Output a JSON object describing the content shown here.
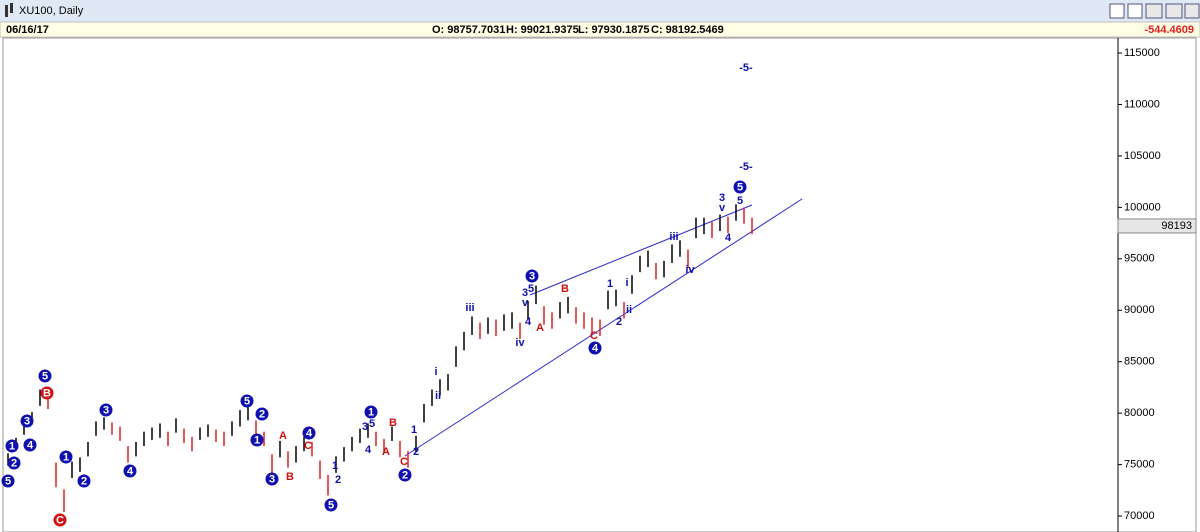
{
  "window": {
    "title": "XU100, Daily"
  },
  "info": {
    "date": "06/16/17",
    "open": "O: 98757.7031",
    "high": "H: 99021.9375",
    "low": "L: 97930.1875",
    "close": "C: 98192.5469",
    "change": "-544.4609"
  },
  "chart_data": {
    "type": "ohlc",
    "ylim": [
      68450,
      116460
    ],
    "yticks": [
      70000,
      75000,
      80000,
      85000,
      90000,
      95000,
      100000,
      105000,
      110000,
      115000
    ],
    "last_price": 98193,
    "up_color": "#000000",
    "down_color": "#e02020",
    "high": [
      76100,
      77600,
      79100,
      80100,
      82300,
      81600,
      75200,
      72600,
      75300,
      75700,
      77200,
      79200,
      79600,
      79100,
      78700,
      76800,
      77200,
      78200,
      78600,
      79000,
      78200,
      79500,
      78500,
      77700,
      78600,
      78900,
      78400,
      78200,
      79200,
      80300,
      80700,
      79300,
      78200,
      76000,
      77300,
      76300,
      76800,
      77700,
      77200,
      75400,
      74000,
      75800,
      76700,
      77700,
      78500,
      79000,
      78200,
      77500,
      78700,
      77300,
      76300,
      77800,
      80900,
      82300,
      83300,
      83800,
      86500,
      87900,
      89400,
      88800,
      89300,
      89100,
      89600,
      89800,
      88800,
      90900,
      92400,
      90400,
      89800,
      90800,
      91300,
      90300,
      89800,
      89300,
      89100,
      91900,
      92000,
      90800,
      93400,
      95300,
      95800,
      94600,
      94800,
      96400,
      96800,
      95900,
      99000,
      99000,
      98600,
      99300,
      99100,
      100300,
      100000,
      99000
    ],
    "low": [
      74900,
      76400,
      77900,
      78900,
      80700,
      80400,
      72800,
      70400,
      73700,
      74300,
      75800,
      77800,
      78400,
      77900,
      77300,
      75200,
      75800,
      76800,
      77400,
      77600,
      76800,
      78100,
      77100,
      76300,
      77400,
      77700,
      77200,
      76800,
      77800,
      78700,
      79300,
      77700,
      76800,
      74000,
      75700,
      74700,
      75200,
      76300,
      75800,
      73600,
      72000,
      74200,
      75300,
      76300,
      77100,
      77600,
      76800,
      76100,
      77300,
      75700,
      74700,
      76200,
      79100,
      80700,
      81700,
      82200,
      84500,
      86100,
      87600,
      87200,
      87700,
      87500,
      88000,
      88200,
      87200,
      89100,
      90600,
      88600,
      88200,
      89200,
      89700,
      88700,
      88200,
      87700,
      87500,
      90100,
      90400,
      89200,
      91600,
      93700,
      94200,
      93000,
      93200,
      94600,
      95200,
      94100,
      97000,
      97400,
      97000,
      97700,
      97500,
      98700,
      98400,
      97400
    ],
    "wedge": "wedge",
    "annotations": [
      {
        "label": "5",
        "style": "cb"
      },
      {
        "label": "2",
        "style": "cb"
      },
      {
        "label": "1",
        "style": "cb"
      },
      {
        "label": "4",
        "style": "cb"
      },
      {
        "label": "3",
        "style": "cb"
      },
      {
        "label": "5",
        "style": "cb"
      },
      {
        "label": "B",
        "style": "cr"
      },
      {
        "label": "C",
        "style": "cr"
      },
      {
        "label": "1",
        "style": "cb"
      },
      {
        "label": "2",
        "style": "cb"
      },
      {
        "label": "3",
        "style": "cb"
      },
      {
        "label": "4",
        "style": "cb"
      },
      {
        "label": "5",
        "style": "cb"
      },
      {
        "label": "2",
        "style": "cb"
      },
      {
        "label": "1",
        "style": "cb"
      },
      {
        "label": "3",
        "style": "cb"
      },
      {
        "label": "A",
        "style": "r"
      },
      {
        "label": "B",
        "style": "r"
      },
      {
        "label": "4",
        "style": "cb"
      },
      {
        "label": "C",
        "style": "r"
      },
      {
        "label": "5",
        "style": "cb"
      },
      {
        "label": "1",
        "style": "cb"
      },
      {
        "label": "3",
        "style": "b"
      },
      {
        "label": "5",
        "style": "b"
      },
      {
        "label": "4",
        "style": "b"
      },
      {
        "label": "B",
        "style": "r"
      },
      {
        "label": "A",
        "style": "r"
      },
      {
        "label": "2",
        "style": "b"
      },
      {
        "label": "1",
        "style": "b"
      },
      {
        "label": "C",
        "style": "r"
      },
      {
        "label": "2",
        "style": "cb"
      },
      {
        "label": "1",
        "style": "b"
      },
      {
        "label": "2",
        "style": "b"
      },
      {
        "label": "i",
        "style": "b"
      },
      {
        "label": "ii",
        "style": "b"
      },
      {
        "label": "iii",
        "style": "b"
      },
      {
        "label": "iv",
        "style": "b"
      },
      {
        "label": "3",
        "style": "cb"
      },
      {
        "label": "3",
        "style": "b"
      },
      {
        "label": "5",
        "style": "b"
      },
      {
        "label": "v",
        "style": "b"
      },
      {
        "label": "4",
        "style": "b"
      },
      {
        "label": "A",
        "style": "r"
      },
      {
        "label": "B",
        "style": "r"
      },
      {
        "label": "C",
        "style": "r"
      },
      {
        "label": "4",
        "style": "cb"
      },
      {
        "label": "1",
        "style": "b"
      },
      {
        "label": "2",
        "style": "b"
      },
      {
        "label": "i",
        "style": "b"
      },
      {
        "label": "ii",
        "style": "b"
      },
      {
        "label": "iii",
        "style": "b"
      },
      {
        "label": "iv",
        "style": "b"
      },
      {
        "label": "3",
        "style": "b"
      },
      {
        "label": "v",
        "style": "b"
      },
      {
        "label": "5",
        "style": "b"
      },
      {
        "label": "4",
        "style": "b"
      },
      {
        "label": "5",
        "style": "cb"
      },
      {
        "label": "-5-",
        "style": "b"
      },
      {
        "label": "-5-",
        "style": "b"
      }
    ]
  }
}
